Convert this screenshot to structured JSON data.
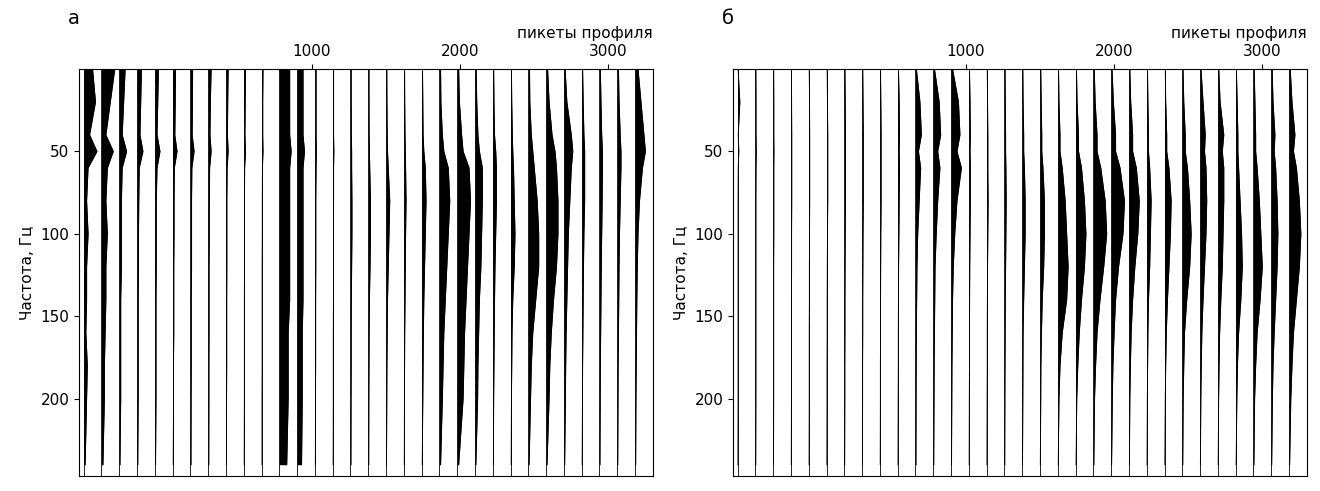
{
  "chart_data": [
    {
      "type": "wiggle",
      "title": "а",
      "x_label": "пикеты профиля",
      "y_label": "Частота, Гц",
      "color": "#000000",
      "xlim": [
        -570,
        3300
      ],
      "ylim": [
        247,
        0
      ],
      "xticks": [
        1000,
        2000,
        3000
      ],
      "yticks": [
        50,
        100,
        150,
        200
      ],
      "frequencies": [
        0,
        20,
        40,
        50,
        60,
        80,
        100,
        120,
        140,
        160,
        180,
        200,
        240
      ],
      "traces": [
        {
          "picket": -540,
          "values": [
            60,
            80,
            40,
            90,
            30,
            20,
            30,
            20,
            20,
            15,
            25,
            20,
            10
          ]
        },
        {
          "picket": -420,
          "values": [
            90,
            60,
            30,
            80,
            40,
            30,
            40,
            30,
            30,
            25,
            20,
            20,
            10
          ]
        },
        {
          "picket": -300,
          "values": [
            40,
            30,
            20,
            50,
            20,
            15,
            15,
            15,
            10,
            10,
            10,
            10,
            5
          ]
        },
        {
          "picket": -180,
          "values": [
            30,
            25,
            20,
            40,
            15,
            12,
            10,
            10,
            8,
            8,
            8,
            8,
            5
          ]
        },
        {
          "picket": -60,
          "values": [
            25,
            20,
            15,
            35,
            15,
            10,
            10,
            10,
            8,
            8,
            8,
            8,
            5
          ]
        },
        {
          "picket": 60,
          "values": [
            20,
            18,
            15,
            30,
            12,
            10,
            10,
            8,
            8,
            8,
            6,
            6,
            4
          ]
        },
        {
          "picket": 180,
          "values": [
            15,
            14,
            12,
            25,
            10,
            8,
            8,
            8,
            6,
            6,
            6,
            5,
            4
          ]
        },
        {
          "picket": 300,
          "values": [
            20,
            15,
            12,
            20,
            10,
            8,
            8,
            6,
            6,
            6,
            5,
            5,
            4
          ]
        },
        {
          "picket": 420,
          "values": [
            15,
            12,
            10,
            15,
            8,
            6,
            6,
            6,
            5,
            5,
            5,
            4,
            3
          ]
        },
        {
          "picket": 540,
          "values": [
            12,
            10,
            8,
            12,
            6,
            5,
            5,
            5,
            4,
            4,
            4,
            4,
            3
          ]
        },
        {
          "picket": 660,
          "values": [
            10,
            8,
            8,
            10,
            6,
            5,
            5,
            4,
            4,
            4,
            4,
            3,
            3
          ]
        },
        {
          "picket": 780,
          "values": [
            70,
            70,
            70,
            80,
            70,
            70,
            70,
            70,
            70,
            60,
            60,
            60,
            50
          ]
        },
        {
          "picket": 900,
          "values": [
            40,
            40,
            40,
            50,
            40,
            40,
            40,
            40,
            40,
            35,
            35,
            35,
            30
          ]
        },
        {
          "picket": 1020,
          "values": [
            8,
            8,
            8,
            10,
            8,
            6,
            6,
            6,
            5,
            5,
            5,
            4,
            3
          ]
        },
        {
          "picket": 1140,
          "values": [
            6,
            6,
            6,
            8,
            6,
            6,
            5,
            5,
            5,
            4,
            4,
            4,
            3
          ]
        },
        {
          "picket": 1260,
          "values": [
            5,
            5,
            6,
            8,
            8,
            10,
            10,
            8,
            6,
            5,
            5,
            4,
            3
          ]
        },
        {
          "picket": 1380,
          "values": [
            5,
            5,
            6,
            8,
            10,
            15,
            15,
            12,
            8,
            6,
            5,
            4,
            3
          ]
        },
        {
          "picket": 1500,
          "values": [
            5,
            6,
            8,
            10,
            15,
            25,
            20,
            15,
            10,
            8,
            6,
            5,
            3
          ]
        },
        {
          "picket": 1620,
          "values": [
            5,
            6,
            8,
            10,
            12,
            15,
            12,
            10,
            8,
            6,
            5,
            4,
            3
          ]
        },
        {
          "picket": 1740,
          "values": [
            6,
            8,
            10,
            15,
            25,
            30,
            25,
            20,
            15,
            12,
            10,
            8,
            4
          ]
        },
        {
          "picket": 1860,
          "values": [
            8,
            10,
            20,
            30,
            60,
            70,
            60,
            50,
            40,
            30,
            25,
            20,
            8
          ]
        },
        {
          "picket": 1980,
          "values": [
            10,
            15,
            30,
            40,
            80,
            90,
            80,
            70,
            60,
            50,
            45,
            40,
            10
          ]
        },
        {
          "picket": 2100,
          "values": [
            8,
            12,
            20,
            30,
            50,
            50,
            45,
            40,
            30,
            25,
            20,
            18,
            6
          ]
        },
        {
          "picket": 2220,
          "values": [
            6,
            8,
            12,
            20,
            25,
            25,
            20,
            15,
            12,
            10,
            8,
            6,
            4
          ]
        },
        {
          "picket": 2340,
          "values": [
            6,
            8,
            12,
            15,
            20,
            25,
            30,
            25,
            15,
            10,
            8,
            6,
            4
          ]
        },
        {
          "picket": 2460,
          "values": [
            8,
            10,
            20,
            30,
            40,
            60,
            70,
            70,
            50,
            30,
            20,
            15,
            5
          ]
        },
        {
          "picket": 2580,
          "values": [
            10,
            20,
            40,
            60,
            70,
            80,
            80,
            70,
            50,
            35,
            25,
            20,
            6
          ]
        },
        {
          "picket": 2700,
          "values": [
            8,
            20,
            50,
            60,
            50,
            40,
            30,
            25,
            20,
            15,
            12,
            10,
            5
          ]
        },
        {
          "picket": 2820,
          "values": [
            6,
            10,
            15,
            20,
            20,
            20,
            15,
            12,
            10,
            8,
            6,
            5,
            3
          ]
        },
        {
          "picket": 2940,
          "values": [
            6,
            10,
            15,
            20,
            20,
            18,
            15,
            12,
            10,
            8,
            6,
            5,
            3
          ]
        },
        {
          "picket": 3060,
          "values": [
            8,
            12,
            20,
            25,
            25,
            20,
            15,
            12,
            10,
            8,
            6,
            5,
            3
          ]
        },
        {
          "picket": 3180,
          "values": [
            20,
            40,
            60,
            70,
            50,
            30,
            20,
            15,
            12,
            10,
            8,
            6,
            4
          ]
        }
      ]
    },
    {
      "type": "wiggle",
      "title": "б",
      "x_label": "пикеты профиля",
      "y_label": "Частота, Гц",
      "color": "#000000",
      "xlim": [
        -570,
        3300
      ],
      "ylim": [
        247,
        0
      ],
      "xticks": [
        1000,
        2000,
        3000
      ],
      "yticks": [
        50,
        100,
        150,
        200
      ],
      "frequencies": [
        0,
        20,
        40,
        50,
        60,
        80,
        100,
        120,
        140,
        160,
        180,
        200,
        240
      ],
      "traces": [
        {
          "picket": -540,
          "values": [
            3,
            15,
            4,
            8,
            4,
            3,
            3,
            3,
            3,
            3,
            3,
            3,
            2
          ]
        },
        {
          "picket": -420,
          "values": [
            3,
            4,
            4,
            6,
            4,
            3,
            3,
            3,
            3,
            3,
            3,
            3,
            2
          ]
        },
        {
          "picket": -300,
          "values": [
            3,
            4,
            4,
            5,
            4,
            4,
            4,
            3,
            3,
            3,
            3,
            3,
            2
          ]
        },
        {
          "picket": -180,
          "values": [
            3,
            4,
            5,
            5,
            5,
            5,
            4,
            4,
            3,
            3,
            3,
            3,
            2
          ]
        },
        {
          "picket": -60,
          "values": [
            3,
            5,
            6,
            6,
            6,
            6,
            5,
            4,
            4,
            3,
            3,
            3,
            2
          ]
        },
        {
          "picket": 60,
          "values": [
            4,
            6,
            8,
            8,
            8,
            8,
            6,
            5,
            4,
            4,
            3,
            3,
            2
          ]
        },
        {
          "picket": 180,
          "values": [
            4,
            6,
            8,
            8,
            8,
            8,
            6,
            5,
            4,
            4,
            3,
            3,
            2
          ]
        },
        {
          "picket": 300,
          "values": [
            4,
            6,
            8,
            8,
            8,
            8,
            6,
            5,
            4,
            4,
            3,
            3,
            2
          ]
        },
        {
          "picket": 420,
          "values": [
            4,
            6,
            8,
            8,
            8,
            8,
            6,
            5,
            4,
            4,
            3,
            3,
            2
          ]
        },
        {
          "picket": 540,
          "values": [
            5,
            10,
            12,
            10,
            12,
            10,
            8,
            6,
            5,
            4,
            4,
            3,
            2
          ]
        },
        {
          "picket": 660,
          "values": [
            6,
            30,
            40,
            20,
            35,
            25,
            15,
            10,
            8,
            6,
            5,
            4,
            3
          ]
        },
        {
          "picket": 780,
          "values": [
            8,
            40,
            50,
            30,
            45,
            30,
            20,
            12,
            10,
            8,
            6,
            5,
            3
          ]
        },
        {
          "picket": 900,
          "values": [
            10,
            50,
            60,
            40,
            70,
            40,
            25,
            15,
            10,
            8,
            6,
            5,
            3
          ]
        },
        {
          "picket": 1020,
          "values": [
            4,
            8,
            10,
            8,
            10,
            10,
            8,
            6,
            5,
            4,
            4,
            3,
            2
          ]
        },
        {
          "picket": 1140,
          "values": [
            4,
            6,
            8,
            8,
            8,
            10,
            8,
            6,
            5,
            4,
            4,
            3,
            2
          ]
        },
        {
          "picket": 1260,
          "values": [
            4,
            6,
            8,
            8,
            10,
            12,
            10,
            8,
            6,
            5,
            4,
            3,
            2
          ]
        },
        {
          "picket": 1380,
          "values": [
            4,
            6,
            10,
            10,
            15,
            20,
            20,
            15,
            10,
            6,
            5,
            4,
            2
          ]
        },
        {
          "picket": 1500,
          "values": [
            5,
            8,
            12,
            12,
            20,
            30,
            30,
            25,
            15,
            10,
            6,
            5,
            2
          ]
        },
        {
          "picket": 1620,
          "values": [
            5,
            8,
            15,
            15,
            30,
            50,
            60,
            70,
            60,
            30,
            15,
            8,
            3
          ]
        },
        {
          "picket": 1740,
          "values": [
            6,
            10,
            20,
            20,
            40,
            60,
            70,
            60,
            40,
            25,
            15,
            8,
            3
          ]
        },
        {
          "picket": 1860,
          "values": [
            6,
            12,
            25,
            25,
            50,
            80,
            90,
            70,
            45,
            25,
            15,
            8,
            3
          ]
        },
        {
          "picket": 1980,
          "values": [
            6,
            15,
            30,
            30,
            60,
            90,
            80,
            50,
            30,
            20,
            12,
            8,
            3
          ]
        },
        {
          "picket": 2100,
          "values": [
            6,
            12,
            25,
            25,
            50,
            70,
            60,
            40,
            25,
            15,
            10,
            6,
            3
          ]
        },
        {
          "picket": 2220,
          "values": [
            5,
            8,
            12,
            12,
            20,
            30,
            25,
            20,
            12,
            8,
            6,
            4,
            2
          ]
        },
        {
          "picket": 2340,
          "values": [
            5,
            8,
            15,
            15,
            30,
            45,
            40,
            30,
            20,
            12,
            8,
            5,
            2
          ]
        },
        {
          "picket": 2460,
          "values": [
            5,
            10,
            20,
            20,
            35,
            50,
            60,
            50,
            30,
            15,
            10,
            6,
            3
          ]
        },
        {
          "picket": 2580,
          "values": [
            6,
            20,
            35,
            30,
            40,
            45,
            40,
            30,
            20,
            12,
            8,
            5,
            2
          ]
        },
        {
          "picket": 2700,
          "values": [
            6,
            15,
            40,
            30,
            40,
            40,
            35,
            30,
            20,
            12,
            8,
            5,
            2
          ]
        },
        {
          "picket": 2820,
          "values": [
            5,
            10,
            15,
            15,
            20,
            30,
            40,
            45,
            35,
            20,
            12,
            8,
            3
          ]
        },
        {
          "picket": 2940,
          "values": [
            5,
            10,
            15,
            15,
            25,
            40,
            50,
            60,
            45,
            25,
            15,
            8,
            3
          ]
        },
        {
          "picket": 3060,
          "values": [
            6,
            12,
            25,
            20,
            30,
            40,
            45,
            40,
            30,
            20,
            12,
            8,
            3
          ]
        },
        {
          "picket": 3180,
          "values": [
            8,
            20,
            40,
            30,
            50,
            70,
            80,
            70,
            50,
            30,
            20,
            12,
            4
          ]
        }
      ]
    }
  ]
}
